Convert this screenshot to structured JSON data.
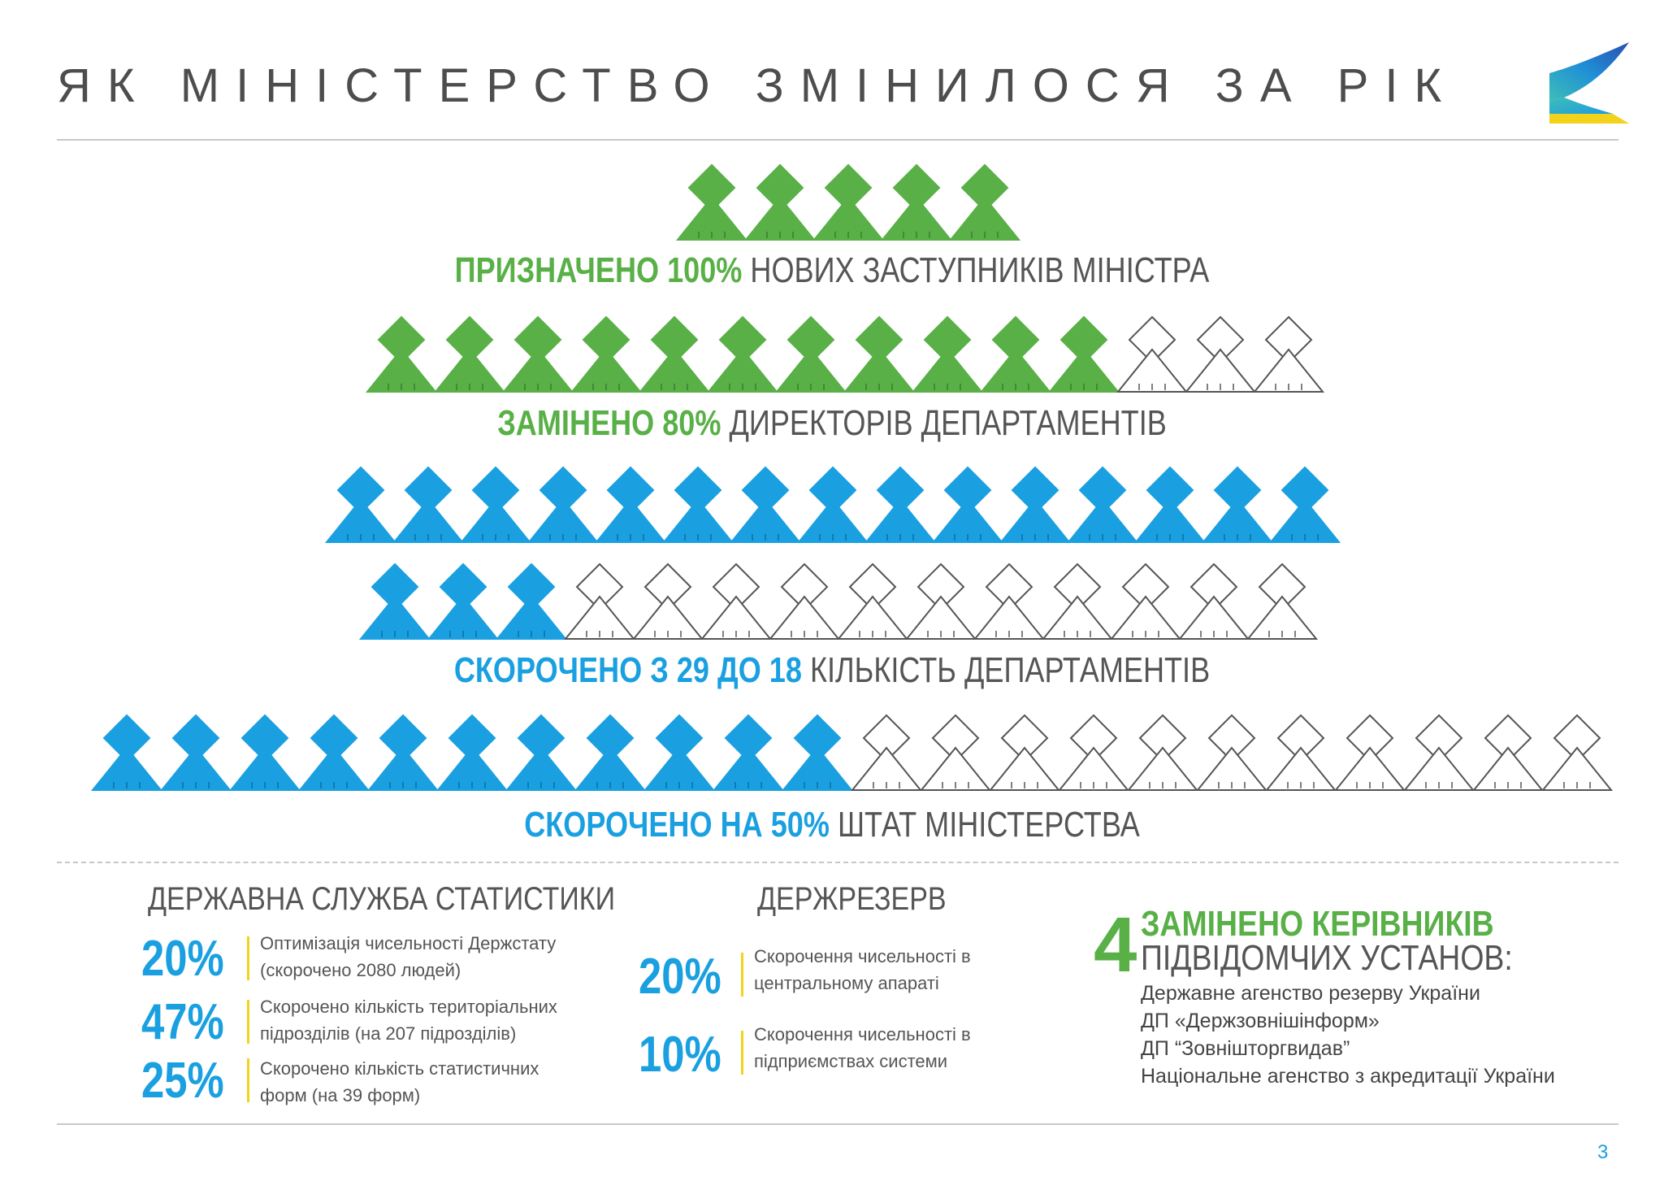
{
  "header": {
    "title": "ЯК МІНІСТЕРСТВО ЗМІНИЛОСЯ ЗА РІК",
    "logo_icon": "ministry-logo-icon"
  },
  "colors": {
    "green": "#58b047",
    "blue": "#1aa0e0",
    "outline": "#555555",
    "accent_bar": "#f2d21b"
  },
  "icon_rows": [
    {
      "row": "deputies",
      "filled": 5,
      "total": 5,
      "color": "green"
    },
    {
      "row": "directors",
      "filled": 11,
      "total": 14,
      "color": "green"
    },
    {
      "row": "departments-1",
      "filled": 15,
      "total": 15,
      "color": "blue"
    },
    {
      "row": "departments-2",
      "filled": 3,
      "total": 14,
      "color": "blue"
    },
    {
      "row": "staff",
      "filled": 11,
      "total": 22,
      "color": "blue"
    }
  ],
  "captions": {
    "deputies": {
      "highlight": "ПРИЗНАЧЕНО 100%",
      "rest": " НОВИХ ЗАСТУПНИКІВ МІНІСТРА"
    },
    "directors": {
      "highlight": "ЗАМІНЕНО 80%",
      "rest": " ДИРЕКТОРІВ ДЕПАРТАМЕНТІВ"
    },
    "departments": {
      "highlight": "СКОРОЧЕНО З 29 ДО 18",
      "rest": " КІЛЬКІСТЬ ДЕПАРТАМЕНТІВ"
    },
    "staff": {
      "highlight": "СКОРОЧЕНО НА 50%",
      "rest": " ШТАТ МІНІСТЕРСТВА"
    }
  },
  "stats_service": {
    "title": "ДЕРЖАВНА СЛУЖБА СТАТИСТИКИ",
    "items": [
      {
        "pct": "20%",
        "line1": "Оптимізація чисельності Держстату",
        "line2": "(скорочено 2080 людей)"
      },
      {
        "pct": "47%",
        "line1": "Скорочено кількість територіальних",
        "line2": "підрозділів (на 207 підрозділів)"
      },
      {
        "pct": "25%",
        "line1": "Скорочено кількість статистичних",
        "line2": "форм (на 39 форм)"
      }
    ]
  },
  "reserve": {
    "title": "ДЕРЖРЕЗЕРВ",
    "items": [
      {
        "pct": "20%",
        "line1": "Скорочення чисельності в",
        "line2": "центральному апараті"
      },
      {
        "pct": "10%",
        "line1": "Скорочення чисельності в",
        "line2": "підприємствах системи"
      }
    ]
  },
  "heads": {
    "number": "4",
    "line1": "ЗАМІНЕНО КЕРІВНИКІВ",
    "line2": "ПІДВІДОМЧИХ УСТАНОВ:",
    "institutions": [
      "Державне агенство резерву України",
      "ДП «Держзовнішінформ»",
      "ДП “Зовнішторгвидав”",
      "Національне агенство з акредитації України"
    ]
  },
  "footer": {
    "page_number": "3"
  }
}
